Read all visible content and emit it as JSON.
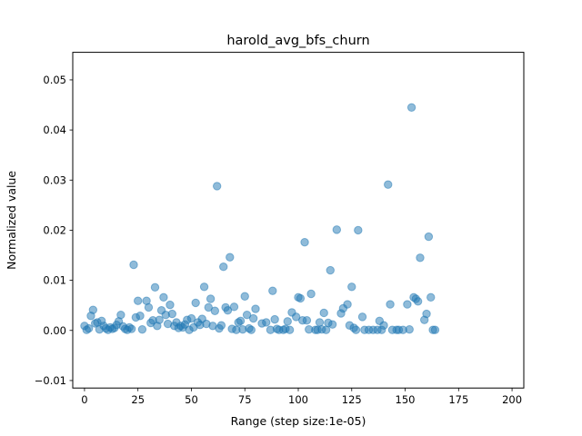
{
  "chart_data": {
    "type": "scatter",
    "title": "harold_avg_bfs_churn",
    "xlabel": "Range (step size:1e-05)",
    "ylabel": "Normalized value",
    "xlim": [
      -5.5,
      205.5
    ],
    "ylim": [
      -0.0115,
      0.0555
    ],
    "xticks": [
      0,
      25,
      50,
      75,
      100,
      125,
      150,
      175,
      200
    ],
    "xtick_labels": [
      "0",
      "25",
      "50",
      "75",
      "100",
      "125",
      "150",
      "175",
      "200"
    ],
    "yticks": [
      -0.01,
      0.0,
      0.01,
      0.02,
      0.03,
      0.04,
      0.05
    ],
    "ytick_labels": [
      "−0.01",
      "0.00",
      "0.01",
      "0.02",
      "0.03",
      "0.04",
      "0.05"
    ],
    "grid": false,
    "legend": "none",
    "marker_color": "#1f77b4",
    "marker_alpha": 0.5,
    "series": [
      {
        "points": [
          [
            0,
            0.0009
          ],
          [
            1,
            0.0001
          ],
          [
            2,
            0.0004
          ],
          [
            3,
            0.0029
          ],
          [
            4,
            0.0041
          ],
          [
            5,
            0.0014
          ],
          [
            6,
            0.0016
          ],
          [
            7,
            0.0002
          ],
          [
            8,
            0.0019
          ],
          [
            9,
            0.0009
          ],
          [
            10,
            0.0004
          ],
          [
            11,
            0.0001
          ],
          [
            12,
            0.0006
          ],
          [
            13,
            0.0003
          ],
          [
            14,
            0.0005
          ],
          [
            15,
            0.0011
          ],
          [
            16,
            0.0018
          ],
          [
            17,
            0.0031
          ],
          [
            18,
            0.0008
          ],
          [
            19,
            0.0003
          ],
          [
            20,
            0.0001
          ],
          [
            21,
            0.0006
          ],
          [
            22,
            0.0003
          ],
          [
            23,
            0.0131
          ],
          [
            24,
            0.0026
          ],
          [
            25,
            0.0059
          ],
          [
            26,
            0.0029
          ],
          [
            27,
            0.0002
          ],
          [
            29,
            0.0059
          ],
          [
            30,
            0.0046
          ],
          [
            31,
            0.0015
          ],
          [
            32,
            0.002
          ],
          [
            33,
            0.0086
          ],
          [
            34,
            0.0009
          ],
          [
            35,
            0.0021
          ],
          [
            36,
            0.004
          ],
          [
            37,
            0.0066
          ],
          [
            38,
            0.0031
          ],
          [
            39,
            0.0013
          ],
          [
            40,
            0.0051
          ],
          [
            41,
            0.0033
          ],
          [
            42,
            0.0009
          ],
          [
            43,
            0.0016
          ],
          [
            44,
            0.0005
          ],
          [
            45,
            0.0009
          ],
          [
            46,
            0.0006
          ],
          [
            47,
            0.0012
          ],
          [
            48,
            0.0021
          ],
          [
            49,
            0.0001
          ],
          [
            50,
            0.0024
          ],
          [
            51,
            0.0006
          ],
          [
            52,
            0.0055
          ],
          [
            53,
            0.0016
          ],
          [
            54,
            0.0011
          ],
          [
            55,
            0.0023
          ],
          [
            56,
            0.0087
          ],
          [
            57,
            0.0013
          ],
          [
            58,
            0.0046
          ],
          [
            59,
            0.0063
          ],
          [
            60,
            0.0009
          ],
          [
            61,
            0.0039
          ],
          [
            62,
            0.0288
          ],
          [
            63,
            0.0004
          ],
          [
            64,
            0.001
          ],
          [
            65,
            0.0127
          ],
          [
            66,
            0.0046
          ],
          [
            67,
            0.004
          ],
          [
            68,
            0.0146
          ],
          [
            69,
            0.0003
          ],
          [
            70,
            0.0047
          ],
          [
            71,
            0.0001
          ],
          [
            72,
            0.0016
          ],
          [
            73,
            0.0019
          ],
          [
            74,
            0.0002
          ],
          [
            75,
            0.0068
          ],
          [
            76,
            0.0031
          ],
          [
            77,
            0.0004
          ],
          [
            78,
            0.0001
          ],
          [
            79,
            0.0024
          ],
          [
            80,
            0.0043
          ],
          [
            83,
            0.0014
          ],
          [
            85,
            0.0016
          ],
          [
            87,
            0.0001
          ],
          [
            88,
            0.0079
          ],
          [
            89,
            0.0022
          ],
          [
            90,
            0.0003
          ],
          [
            91,
            0.0001
          ],
          [
            93,
            0.0001
          ],
          [
            94,
            0.0003
          ],
          [
            95,
            0.0018
          ],
          [
            96,
            0.0001
          ],
          [
            97,
            0.0036
          ],
          [
            99,
            0.0027
          ],
          [
            100,
            0.0066
          ],
          [
            101,
            0.0064
          ],
          [
            102,
            0.002
          ],
          [
            103,
            0.0176
          ],
          [
            104,
            0.002
          ],
          [
            105,
            0.0002
          ],
          [
            106,
            0.0073
          ],
          [
            108,
            0.0001
          ],
          [
            109,
            0.0001
          ],
          [
            110,
            0.0016
          ],
          [
            111,
            0.0002
          ],
          [
            112,
            0.0035
          ],
          [
            113,
            0.0001
          ],
          [
            114,
            0.0015
          ],
          [
            115,
            0.012
          ],
          [
            116,
            0.0012
          ],
          [
            118,
            0.0201
          ],
          [
            120,
            0.0034
          ],
          [
            121,
            0.0044
          ],
          [
            123,
            0.0052
          ],
          [
            124,
            0.001
          ],
          [
            125,
            0.0087
          ],
          [
            126,
            0.0005
          ],
          [
            127,
            0.0001
          ],
          [
            128,
            0.02
          ],
          [
            130,
            0.0027
          ],
          [
            131,
            0.0001
          ],
          [
            133,
            0.0001
          ],
          [
            135,
            0.0001
          ],
          [
            137,
            0.0001
          ],
          [
            138,
            0.0019
          ],
          [
            139,
            0.0001
          ],
          [
            140,
            0.001
          ],
          [
            142,
            0.0291
          ],
          [
            143,
            0.0052
          ],
          [
            144,
            0.0001
          ],
          [
            146,
            0.0001
          ],
          [
            147,
            0.0001
          ],
          [
            149,
            0.0001
          ],
          [
            151,
            0.0052
          ],
          [
            152,
            0.0002
          ],
          [
            153,
            0.0445
          ],
          [
            154,
            0.0066
          ],
          [
            155,
            0.0063
          ],
          [
            156,
            0.0058
          ],
          [
            157,
            0.0145
          ],
          [
            159,
            0.0021
          ],
          [
            160,
            0.0033
          ],
          [
            161,
            0.0187
          ],
          [
            162,
            0.0066
          ],
          [
            163,
            0.0001
          ],
          [
            164,
            0.0001
          ]
        ]
      }
    ]
  }
}
